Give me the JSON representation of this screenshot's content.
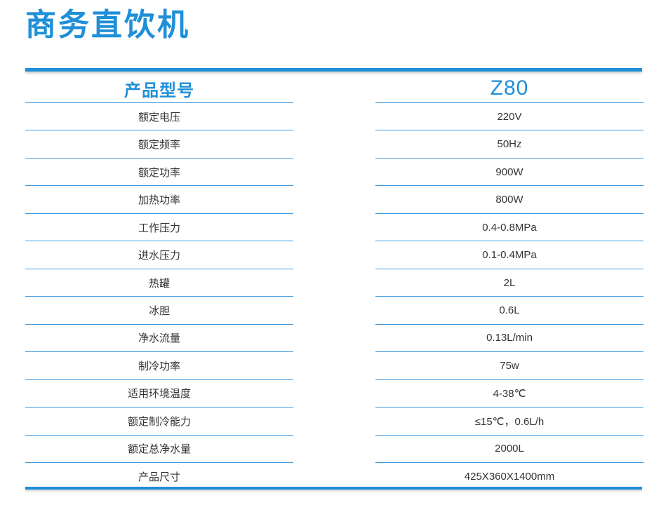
{
  "title": "商务直饮机",
  "table": {
    "header_label": "产品型号",
    "header_value": "Z80",
    "rows": [
      {
        "label": "额定电压",
        "value": "220V"
      },
      {
        "label": "额定频率",
        "value": "50Hz"
      },
      {
        "label": "额定功率",
        "value": "900W"
      },
      {
        "label": "加热功率",
        "value": "800W"
      },
      {
        "label": "工作压力",
        "value": "0.4-0.8MPa"
      },
      {
        "label": "进水压力",
        "value": "0.1-0.4MPa"
      },
      {
        "label": "热罐",
        "value": "2L"
      },
      {
        "label": "冰胆",
        "value": "0.6L"
      },
      {
        "label": "净水流量",
        "value": "0.13L/min"
      },
      {
        "label": "制冷功率",
        "value": "75w"
      },
      {
        "label": "适用环境温度",
        "value": "4-38℃"
      },
      {
        "label": "额定制冷能力",
        "value": "≤15℃，0.6L/h"
      },
      {
        "label": "额定总净水量",
        "value": "2000L"
      },
      {
        "label": "产品尺寸",
        "value": "425X360X1400mm"
      }
    ]
  },
  "colors": {
    "accent": "#1f8fd8",
    "text": "#333333",
    "rule": "#3d9ae0"
  }
}
